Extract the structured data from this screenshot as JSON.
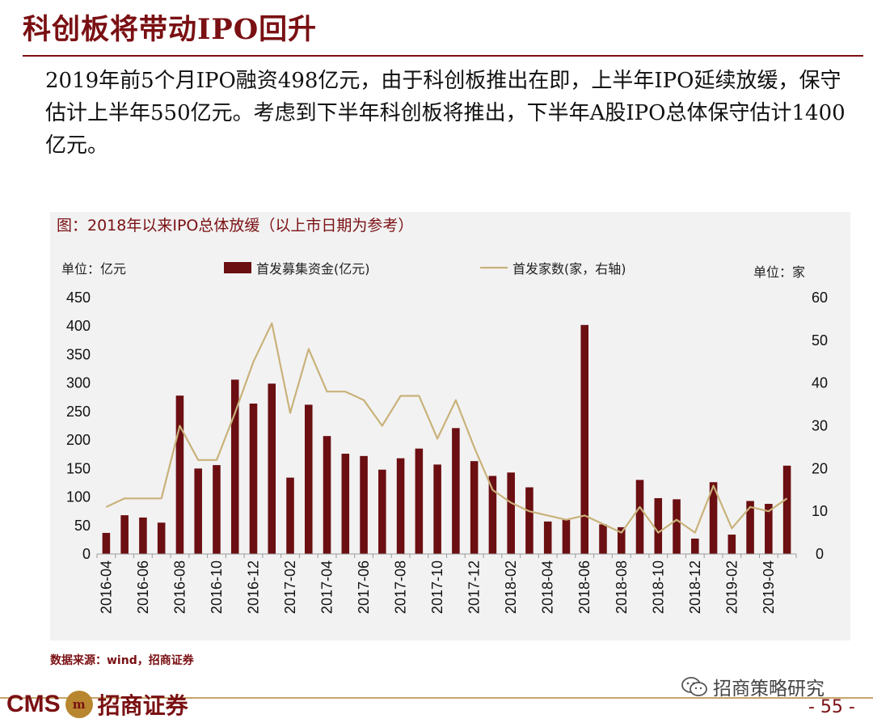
{
  "page": {
    "title": "科创板将带动IPO回升",
    "body": "2019年前5个月IPO融资498亿元，由于科创板推出在即，上半年IPO延续放缓，保守估计上半年550亿元。考虑到下半年科创板将推出，下半年A股IPO总体保守估计1400亿元。",
    "source": "数据来源：wind，招商证券",
    "logo_latin": "CMS",
    "logo_mark": "m",
    "logo_cn": "招商证券",
    "wechat_name": "招商策略研究",
    "page_number": "- 55 -"
  },
  "chart_data": {
    "type": "bar+line",
    "title": "图：2018年以来IPO总体放缓（以上市日期为参考）",
    "left_unit": "单位：亿元",
    "right_unit": "单位：家",
    "bar_color": "#6b0f12",
    "line_color": "#c9b27a",
    "legend_position": "top",
    "categories": [
      "2016-04",
      "2016-05",
      "2016-06",
      "2016-07",
      "2016-08",
      "2016-09",
      "2016-10",
      "2016-11",
      "2016-12",
      "2017-01",
      "2017-02",
      "2017-03",
      "2017-04",
      "2017-05",
      "2017-06",
      "2017-07",
      "2017-08",
      "2017-09",
      "2017-10",
      "2017-11",
      "2017-12",
      "2018-01",
      "2018-02",
      "2018-03",
      "2018-04",
      "2018-05",
      "2018-06",
      "2018-07",
      "2018-08",
      "2018-09",
      "2018-10",
      "2018-11",
      "2018-12",
      "2019-01",
      "2019-02",
      "2019-03",
      "2019-04",
      "2019-05"
    ],
    "x_tick_labels": [
      "2016-04",
      "2016-06",
      "2016-08",
      "2016-10",
      "2016-12",
      "2017-02",
      "2017-04",
      "2017-06",
      "2017-08",
      "2017-10",
      "2017-12",
      "2018-02",
      "2018-04",
      "2018-06",
      "2018-08",
      "2018-10",
      "2018-12",
      "2019-02",
      "2019-04"
    ],
    "series": [
      {
        "name": "首发募集资金(亿元)",
        "axis": "left",
        "type": "bar",
        "values": [
          37,
          68,
          64,
          55,
          278,
          150,
          156,
          306,
          264,
          299,
          134,
          262,
          207,
          176,
          172,
          148,
          168,
          185,
          157,
          221,
          163,
          137,
          143,
          117,
          57,
          60,
          402,
          52,
          47,
          130,
          98,
          96,
          27,
          126,
          34,
          93,
          88,
          155
        ]
      },
      {
        "name": "首发家数(家，右轴)",
        "axis": "right",
        "type": "line",
        "values": [
          11,
          13,
          13,
          13,
          30,
          22,
          22,
          33,
          45,
          54,
          33,
          48,
          38,
          38,
          36,
          30,
          37,
          37,
          27,
          36,
          25,
          15,
          12,
          10,
          9,
          8,
          9,
          7,
          5,
          11,
          5,
          8,
          5,
          16,
          6,
          11,
          10,
          13
        ]
      }
    ],
    "y_left": {
      "min": 0,
      "max": 450,
      "ticks": [
        0,
        50,
        100,
        150,
        200,
        250,
        300,
        350,
        400,
        450
      ]
    },
    "y_right": {
      "min": 0,
      "max": 60,
      "ticks": [
        0,
        10,
        20,
        30,
        40,
        50,
        60
      ]
    }
  }
}
